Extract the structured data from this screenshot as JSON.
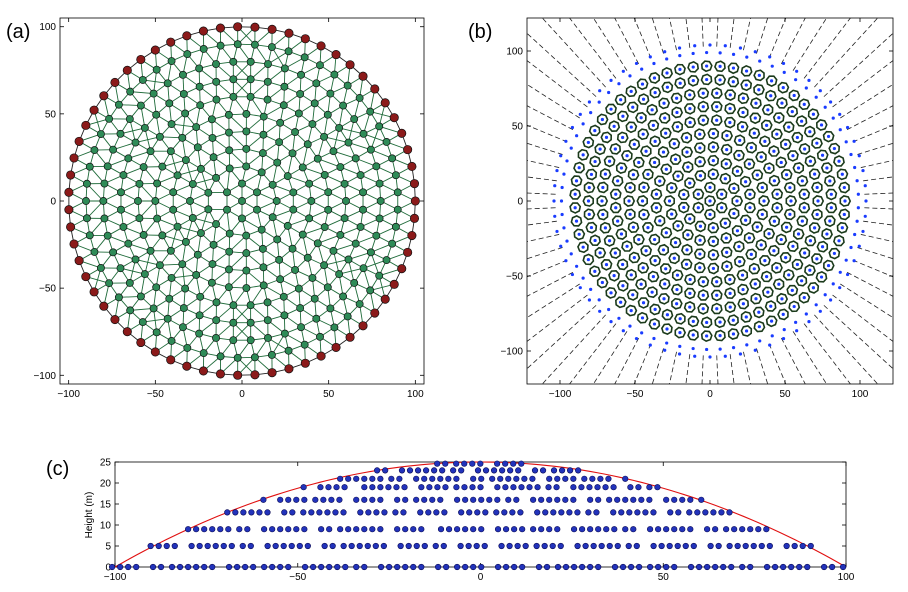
{
  "panels": {
    "a": {
      "label": "(a)"
    },
    "b": {
      "label": "(b)"
    },
    "c": {
      "label": "(c)"
    }
  },
  "chart_data": [
    {
      "id": "a",
      "type": "scatter",
      "description_visible": "circular triangulated mesh of nodes: interior nodes green, boundary nodes dark red",
      "xlim": [
        -105,
        105
      ],
      "ylim": [
        -105,
        105
      ],
      "xticks": [
        -100,
        -50,
        0,
        50,
        100
      ],
      "yticks": [
        -100,
        -50,
        0,
        50,
        100
      ],
      "x_tick_labels": [
        "−100",
        "−50",
        "0",
        "50",
        "100"
      ],
      "y_tick_labels": [
        "−100",
        "−50",
        "0",
        "50",
        "100"
      ],
      "domain_radius": 100,
      "node_spacing": 10,
      "colors": {
        "interior": "#2e8b57",
        "boundary": "#8b1a1a",
        "edge": "#1f6b3a"
      }
    },
    {
      "id": "b",
      "type": "scatter",
      "description_visible": "nodes (blue) with cell polygons inside the disc and dashed rays extending outward",
      "xlim": [
        -122,
        122
      ],
      "ylim": [
        -122,
        122
      ],
      "xticks": [
        -100,
        -50,
        0,
        50,
        100
      ],
      "yticks": [
        -100,
        -50,
        0,
        50,
        100
      ],
      "x_tick_labels": [
        "−100",
        "−50",
        "0",
        "50",
        "100"
      ],
      "y_tick_labels": [
        "−100",
        "−50",
        "0",
        "50",
        "100"
      ],
      "domain_radius": 100,
      "colors": {
        "node": "#1a3cff",
        "cell": "#1b3a1b",
        "ray": "#222222"
      }
    },
    {
      "id": "c",
      "type": "scatter",
      "description_visible": "side view of stacked node layers under a red parabolic dome",
      "xlim": [
        -100,
        100
      ],
      "ylim": [
        0,
        25
      ],
      "xticks": [
        -100,
        -50,
        0,
        50,
        100
      ],
      "yticks": [
        0,
        5,
        10,
        15,
        20,
        25
      ],
      "x_tick_labels": [
        "−100",
        "−50",
        "0",
        "50",
        "100"
      ],
      "y_tick_labels": [
        "0",
        "5",
        "10",
        "15",
        "20",
        "25"
      ],
      "ylabel": "Height (m)",
      "dome_peak_height": 25,
      "layer_heights": [
        0,
        5,
        9,
        13,
        16,
        19,
        21,
        23,
        24.6
      ],
      "colors": {
        "node": "#2233bb",
        "dome": "#e01010"
      }
    }
  ]
}
